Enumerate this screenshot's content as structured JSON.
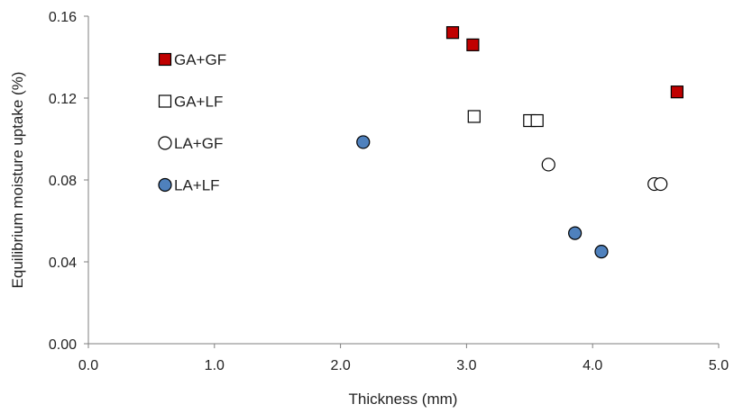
{
  "chart_data": {
    "type": "scatter",
    "xlabel": "Thickness (mm)",
    "ylabel": "Equilibrium moisture uptake (%)",
    "xlim": [
      0,
      5
    ],
    "ylim": [
      0,
      0.16
    ],
    "xticks": [
      0,
      1,
      2,
      3,
      4,
      5
    ],
    "xtick_labels": [
      "0.0",
      "1.0",
      "2.0",
      "3.0",
      "4.0",
      "5.0"
    ],
    "yticks": [
      0,
      0.04,
      0.08,
      0.12,
      0.16
    ],
    "ytick_labels": [
      "0.00",
      "0.04",
      "0.08",
      "0.12",
      "0.16"
    ],
    "grid": false,
    "legend_position": "left",
    "series": [
      {
        "name": "GA+GF",
        "marker": "square-filled",
        "color": "#c00000",
        "points": [
          [
            2.89,
            0.152
          ],
          [
            3.05,
            0.146
          ],
          [
            4.67,
            0.123
          ]
        ]
      },
      {
        "name": "GA+LF",
        "marker": "square-open",
        "color": "#000000",
        "points": [
          [
            3.06,
            0.111
          ],
          [
            3.5,
            0.109
          ],
          [
            3.56,
            0.109
          ]
        ]
      },
      {
        "name": "LA+GF",
        "marker": "circle-open",
        "color": "#000000",
        "points": [
          [
            3.65,
            0.0875
          ],
          [
            4.49,
            0.078
          ],
          [
            4.54,
            0.078
          ]
        ]
      },
      {
        "name": "LA+LF",
        "marker": "circle-filled",
        "color": "#4f81bd",
        "points": [
          [
            2.18,
            0.0985
          ],
          [
            3.86,
            0.054
          ],
          [
            4.07,
            0.045
          ]
        ]
      }
    ]
  }
}
